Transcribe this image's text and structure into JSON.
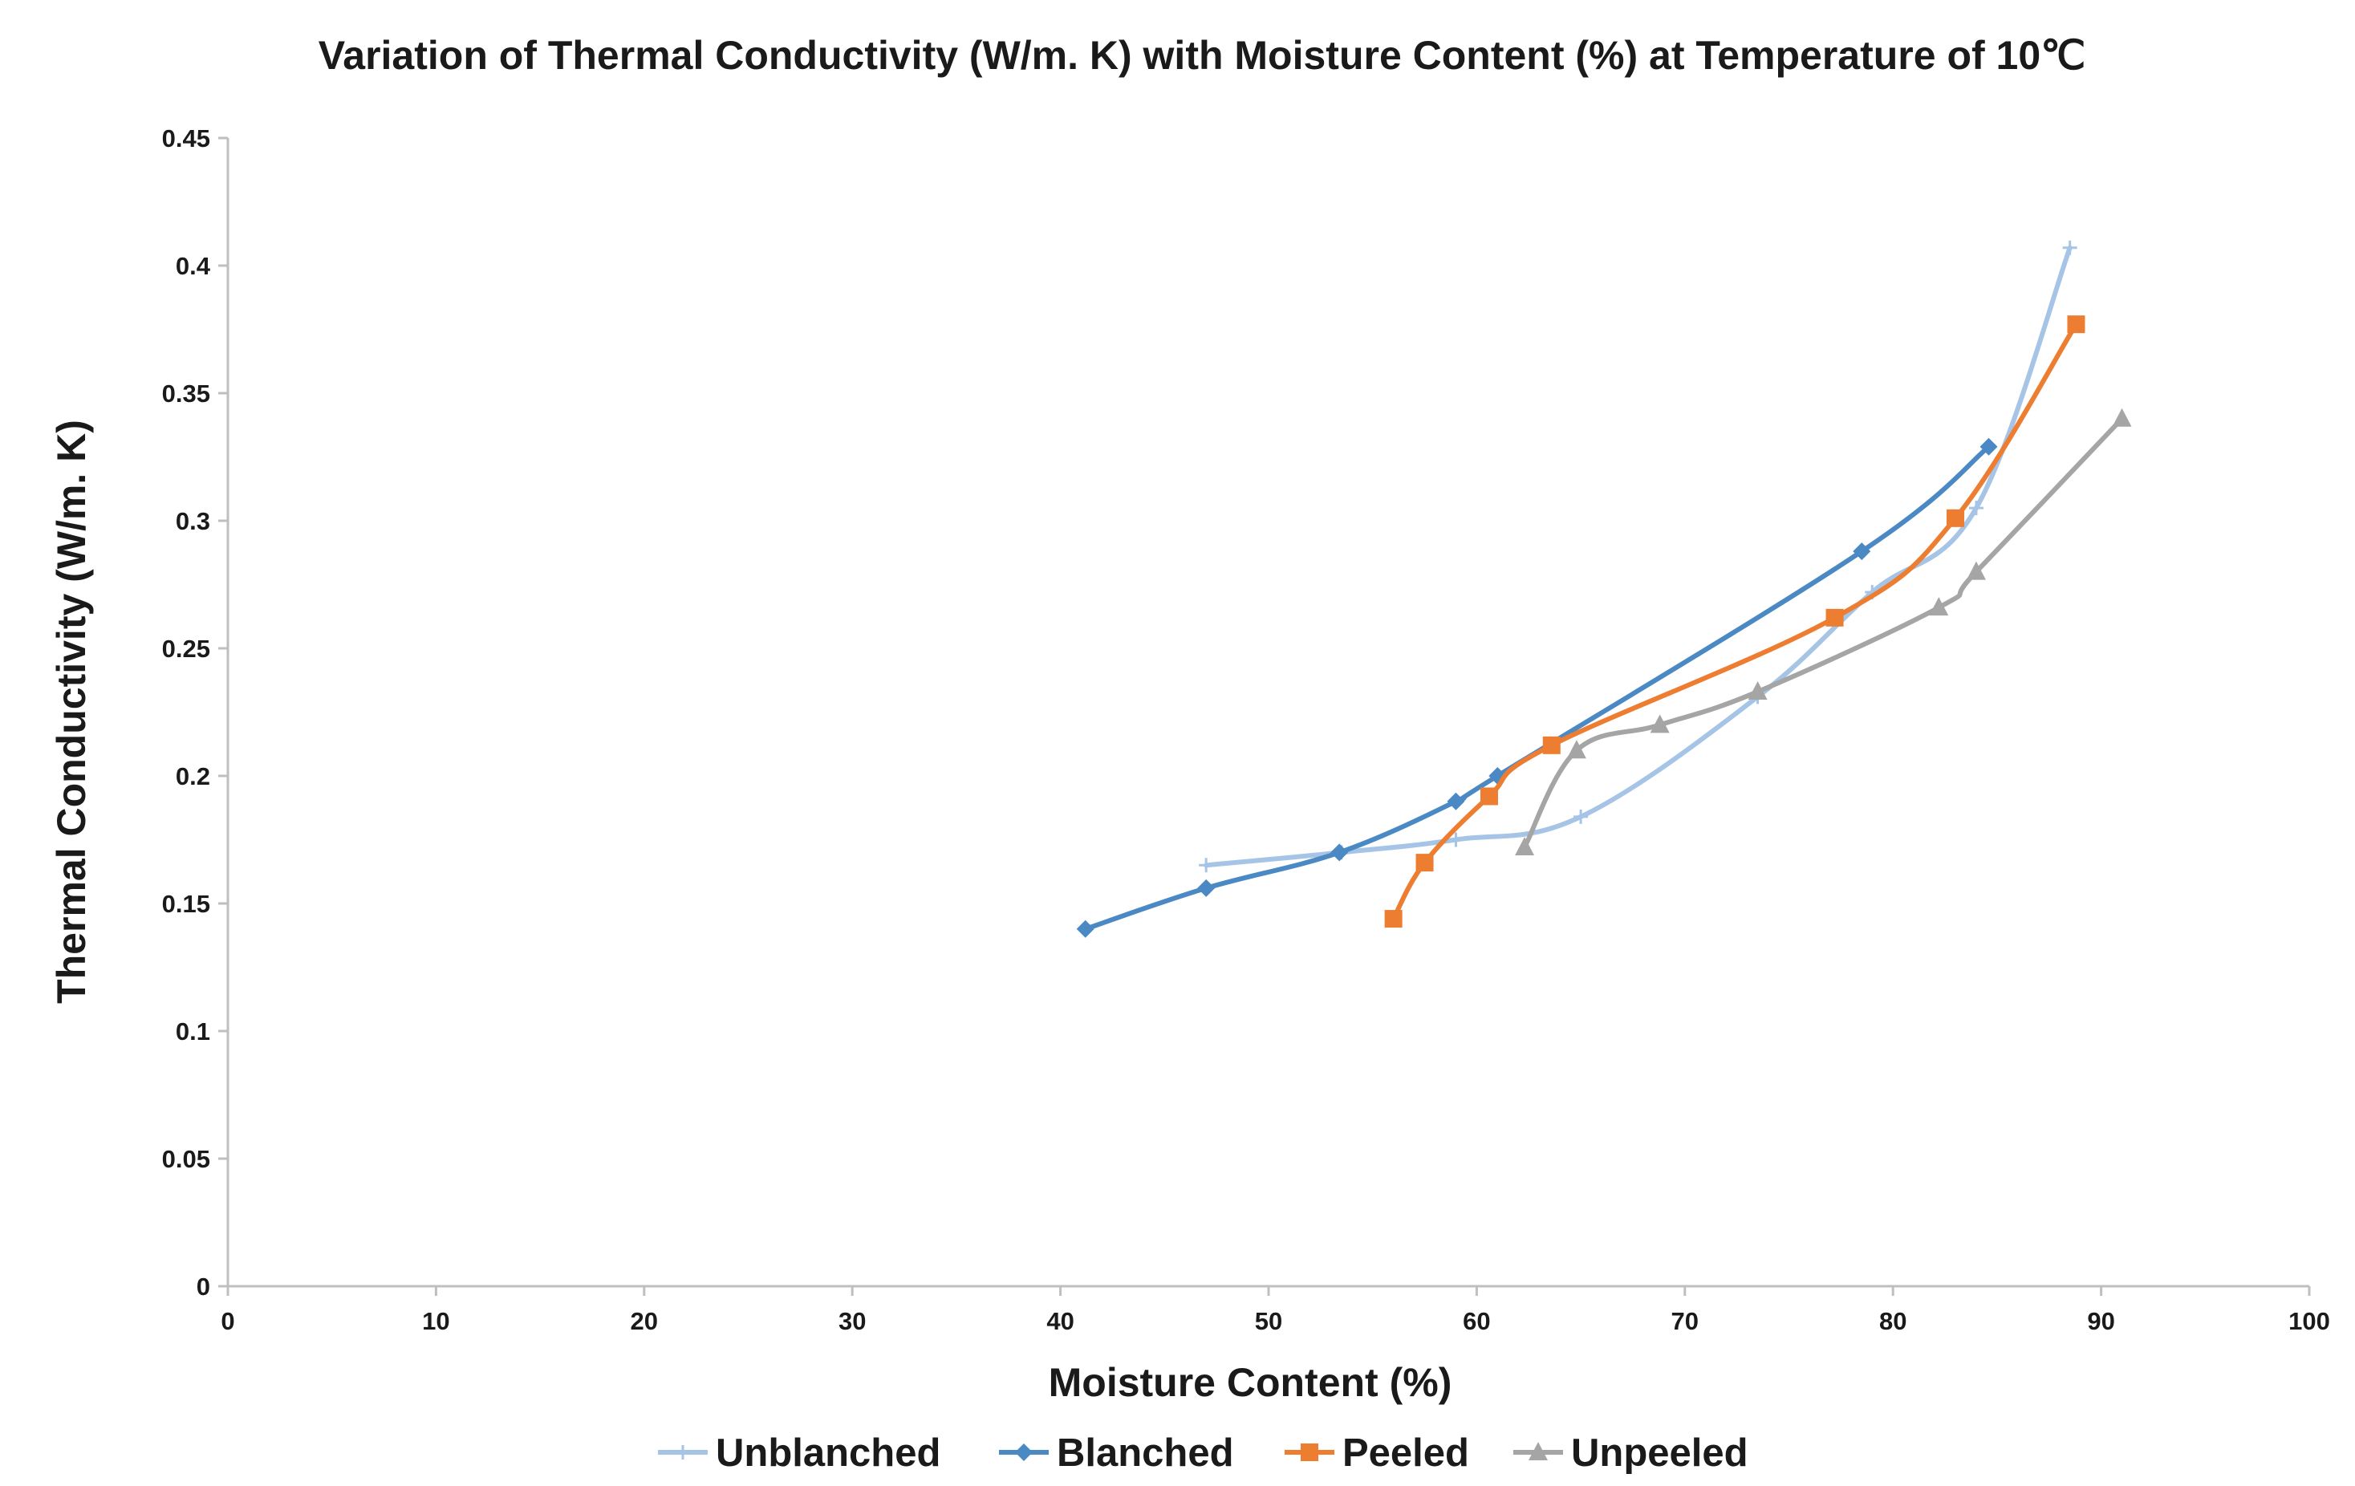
{
  "chart_data": {
    "type": "line",
    "title": "Variation of Thermal Conductivity (W/m. K) with Moisture Content (%) at Temperature of 10℃",
    "xlabel": "Moisture Content (%)",
    "ylabel": "Thermal Conductivity (W/m. K)",
    "xlim": [
      0,
      100
    ],
    "ylim": [
      0,
      0.45
    ],
    "xticks": [
      "0",
      "10",
      "20",
      "30",
      "40",
      "50",
      "60",
      "70",
      "80",
      "90",
      "100"
    ],
    "yticks": [
      "0",
      "0.05",
      "0.1",
      "0.15",
      "0.2",
      "0.25",
      "0.3",
      "0.35",
      "0.4",
      "0.45"
    ],
    "grid": false,
    "legend_position": "bottom",
    "series": [
      {
        "name": "Unblanched",
        "color": "#a6c4e6",
        "marker": "plus",
        "x": [
          47.0,
          53.5,
          59.0,
          65.0,
          73.5,
          79.0,
          84.0,
          88.5
        ],
        "y": [
          0.165,
          0.17,
          0.175,
          0.184,
          0.231,
          0.272,
          0.305,
          0.407
        ]
      },
      {
        "name": "Blanched",
        "color": "#4a89c3",
        "marker": "diamond",
        "x": [
          41.2,
          47.0,
          53.4,
          59.0,
          61.0,
          78.5,
          84.6
        ],
        "y": [
          0.14,
          0.156,
          0.17,
          0.19,
          0.2,
          0.288,
          0.329
        ]
      },
      {
        "name": "Peeled",
        "color": "#ed7d31",
        "marker": "square",
        "x": [
          56.0,
          57.5,
          60.6,
          63.6,
          77.2,
          83.0,
          88.8
        ],
        "y": [
          0.144,
          0.166,
          0.192,
          0.212,
          0.262,
          0.301,
          0.377
        ]
      },
      {
        "name": "Unpeeled",
        "color": "#a5a5a5",
        "marker": "triangle",
        "x": [
          62.3,
          64.8,
          68.8,
          73.5,
          82.2,
          84.0,
          91.0
        ],
        "y": [
          0.172,
          0.21,
          0.22,
          0.233,
          0.266,
          0.28,
          0.34
        ]
      }
    ]
  }
}
